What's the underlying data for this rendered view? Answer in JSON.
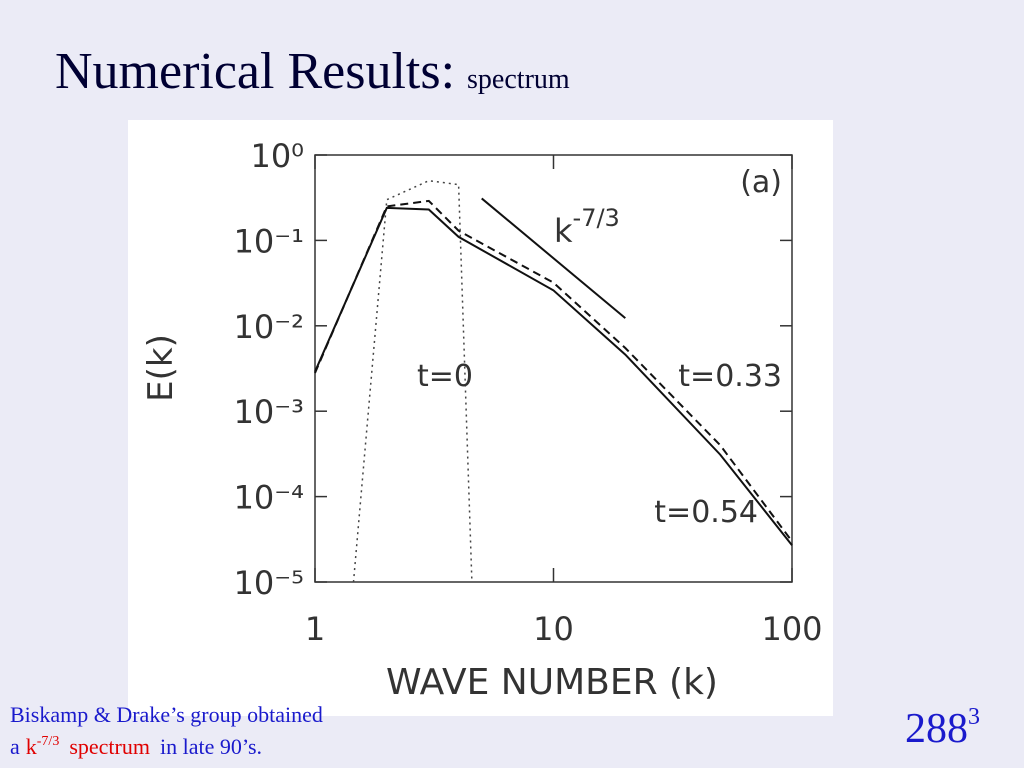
{
  "slide": {
    "title": "Numerical Results:",
    "subtitle": "spectrum",
    "footnote": {
      "line1": "Biskamp & Drake’s group obtained",
      "prefix": "a",
      "k": "k",
      "exponent": "-7/3",
      "highlight": "spectrum",
      "suffix": "in late 90’s."
    },
    "resolution": {
      "base": "288",
      "exponent": "3"
    }
  },
  "chart_data": {
    "type": "line",
    "panel_label": "(a)",
    "x_label": "WAVE NUMBER (k)",
    "y_label": "E(k)",
    "log_x": true,
    "log_y": true,
    "xlim": [
      1,
      100
    ],
    "xticks": [
      1,
      10,
      100
    ],
    "ylim": [
      1e-05,
      1
    ],
    "yticks": [
      {
        "value": 1,
        "label": "10⁰"
      },
      {
        "value": 0.1,
        "label": "10⁻¹"
      },
      {
        "value": 0.01,
        "label": "10⁻²"
      },
      {
        "value": 0.001,
        "label": "10⁻³"
      },
      {
        "value": 0.0001,
        "label": "10⁻⁴"
      },
      {
        "value": 1e-05,
        "label": "10⁻⁵"
      }
    ],
    "series": [
      {
        "name": "t=0",
        "color": "#444444",
        "dash": "dotted",
        "x": [
          1.45,
          2,
          3,
          4,
          4.55
        ],
        "values": [
          1e-05,
          0.3,
          0.5,
          0.45,
          1e-05
        ]
      },
      {
        "name": "t=0.33",
        "color": "#111111",
        "dash": "dashed",
        "x": [
          1,
          2,
          3,
          4,
          10,
          20,
          50,
          100
        ],
        "values": [
          0.0028,
          0.25,
          0.29,
          0.13,
          0.032,
          0.0055,
          0.0004,
          3e-05
        ]
      },
      {
        "name": "t=0.54",
        "color": "#111111",
        "dash": "solid",
        "x": [
          1,
          2,
          3,
          4,
          10,
          20,
          50,
          100
        ],
        "values": [
          0.0029,
          0.24,
          0.23,
          0.11,
          0.026,
          0.0046,
          0.00031,
          2.7e-05
        ]
      }
    ],
    "reference": {
      "label": "k",
      "exponent": "-7/3",
      "color": "#111111",
      "x": [
        5,
        20
      ],
      "values": [
        0.31,
        0.0123
      ]
    }
  }
}
